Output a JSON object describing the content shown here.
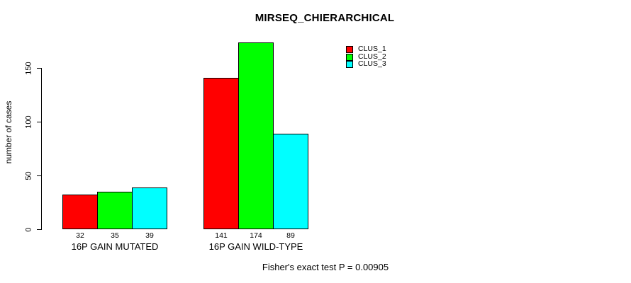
{
  "title": "MIRSEQ_CHIERARCHICAL",
  "chart_data": {
    "type": "bar",
    "title": "MIRSEQ_CHIERARCHICAL",
    "categories": [
      "16P GAIN MUTATED",
      "16P GAIN WILD-TYPE"
    ],
    "series": [
      {
        "name": "CLUS_1",
        "color": "#FF0000",
        "values": [
          32,
          141
        ]
      },
      {
        "name": "CLUS_2",
        "color": "#00FF00",
        "values": [
          35,
          174
        ]
      },
      {
        "name": "CLUS_3",
        "color": "#00FFFF",
        "values": [
          39,
          89
        ]
      }
    ],
    "bar_value_labels": [
      [
        32,
        35,
        39
      ],
      [
        141,
        174,
        89
      ]
    ],
    "xlabel": "",
    "ylabel": "number of cases",
    "yticks": [
      0,
      50,
      100,
      150
    ],
    "ylim": [
      0,
      180
    ],
    "grid": false,
    "legend_position": "top-right",
    "bar_border_color": "#000000",
    "axis_color": "#000000"
  },
  "footer": {
    "note": "Fisher's exact test P = 0.00905"
  }
}
